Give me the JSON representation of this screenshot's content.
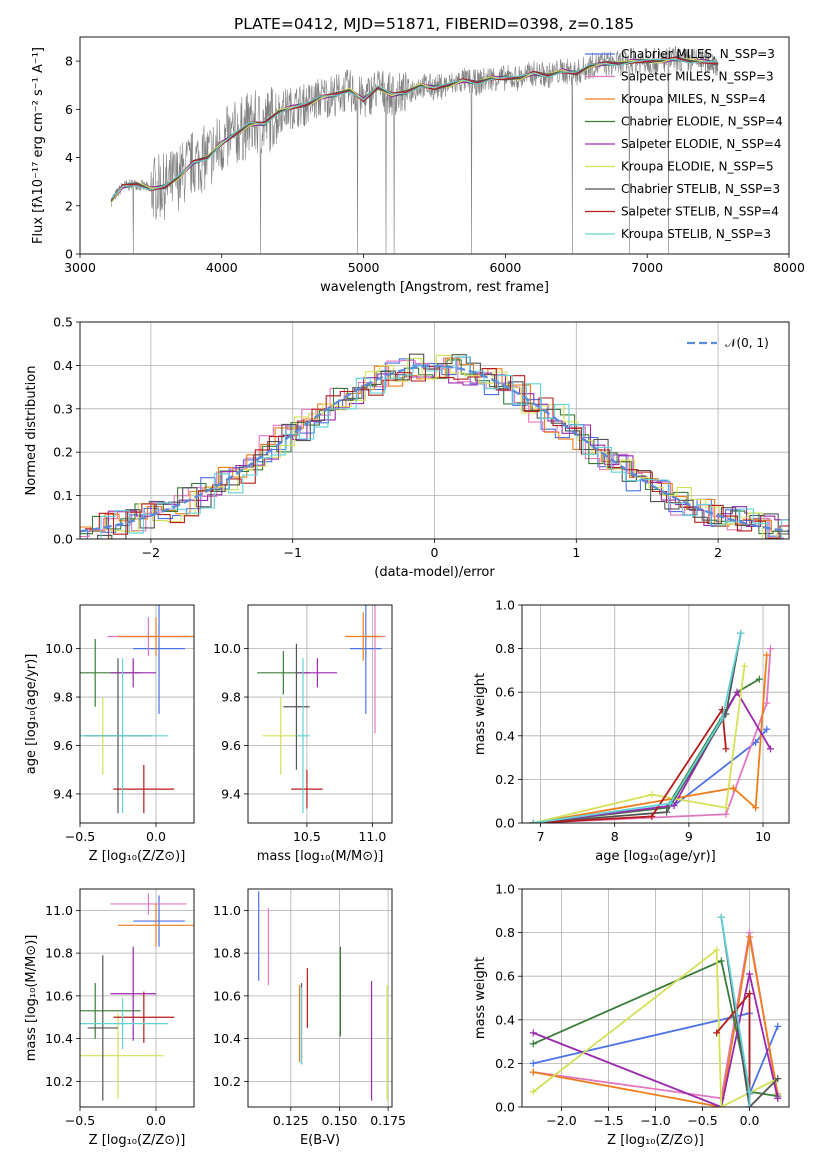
{
  "colors": {
    "series": [
      "#4c72e8",
      "#e377c2",
      "#ef7d1a",
      "#3a7d3a",
      "#9c27b0",
      "#d4e157",
      "#555555",
      "#b71c1c",
      "#61d3d8"
    ],
    "data_spectrum": "#808080",
    "normal_curve": "#5b8ad8"
  },
  "chart_data": [
    {
      "id": "spectrum",
      "type": "line",
      "title": "PLATE=0412, MJD=51871, FIBERID=0398, z=0.185",
      "xlabel": "wavelength [Angstrom, rest frame]",
      "ylabel": "Flux [fλ10⁻¹⁷ erg cm⁻² s⁻¹ A⁻¹]",
      "xlim": [
        3000,
        8000
      ],
      "ylim": [
        0,
        9
      ],
      "xticks": [
        "3000",
        "4000",
        "5000",
        "6000",
        "7000",
        "8000"
      ],
      "yticks": [
        "0",
        "2",
        "4",
        "6",
        "8"
      ],
      "legend_position": "right",
      "legend": [
        "Chabrier MILES, N_SSP=3",
        "Salpeter MILES, N_SSP=3",
        "Kroupa MILES, N_SSP=4",
        "Chabrier ELODIE, N_SSP=4",
        "Salpeter ELODIE, N_SSP=4",
        "Kroupa ELODIE, N_SSP=5",
        "Chabrier STELIB, N_SSP=3",
        "Salpeter STELIB, N_SSP=4",
        "Kroupa STELIB, N_SSP=3"
      ],
      "model_x": [
        3220,
        3300,
        3400,
        3500,
        3600,
        3700,
        3800,
        3900,
        4000,
        4100,
        4200,
        4300,
        4400,
        4500,
        4600,
        4700,
        4800,
        4900,
        5000,
        5100,
        5200,
        5300,
        5400,
        5500,
        5600,
        5700,
        5800,
        5900,
        6000,
        6100,
        6200,
        6300,
        6400,
        6500,
        6600,
        6700,
        6800,
        6900,
        7000,
        7100,
        7200,
        7300,
        7400,
        7500
      ],
      "model_y": [
        2.2,
        2.8,
        2.9,
        2.7,
        2.8,
        3.2,
        3.8,
        4.0,
        4.6,
        5.0,
        5.4,
        5.4,
        5.9,
        6.1,
        6.2,
        6.5,
        6.6,
        6.8,
        6.4,
        6.9,
        6.6,
        6.7,
        7.0,
        6.9,
        7.0,
        7.2,
        7.1,
        7.3,
        7.3,
        7.3,
        7.5,
        7.4,
        7.6,
        7.5,
        7.8,
        7.9,
        7.9,
        8.0,
        8.0,
        8.0,
        8.1,
        8.0,
        8.0,
        7.9
      ]
    },
    {
      "id": "residuals",
      "type": "step",
      "xlabel": "(data-model)/error",
      "ylabel": "Normed distribution",
      "xlim": [
        -2.5,
        2.5
      ],
      "ylim": [
        0,
        0.5
      ],
      "xticks": [
        "−2",
        "−1",
        "0",
        "1",
        "2"
      ],
      "yticks": [
        "0.0",
        "0.1",
        "0.2",
        "0.3",
        "0.4",
        "0.5"
      ],
      "legend": [
        "𝒩(0, 1)"
      ],
      "legend_position": "top-right"
    },
    {
      "id": "age_vs_Z",
      "type": "scatter",
      "xlabel": "Z [log₁₀(Z/Z⊙)]",
      "ylabel": "age  [log₁₀(age/yr)]",
      "xlim": [
        -0.5,
        0.25
      ],
      "ylim": [
        9.28,
        10.18
      ],
      "xticks": [
        "−0.5",
        "0.0"
      ],
      "yticks": [
        "9.4",
        "9.6",
        "9.8",
        "10.0"
      ],
      "points": [
        {
          "x": 0.02,
          "y": 10.0,
          "xerr": 0.17,
          "yerr": 0.27
        },
        {
          "x": -0.05,
          "y": 10.05,
          "xerr": 0.27,
          "yerr": 0.08
        },
        {
          "x": 0.0,
          "y": 10.05,
          "xerr": 0.25,
          "yerr": 0.08
        },
        {
          "x": -0.4,
          "y": 9.9,
          "xerr": 0.3,
          "yerr": 0.14
        },
        {
          "x": -0.15,
          "y": 9.9,
          "xerr": 0.15,
          "yerr": 0.06
        },
        {
          "x": -0.35,
          "y": 9.64,
          "xerr": 0.13,
          "yerr": 0.16
        },
        {
          "x": -0.25,
          "y": 9.64,
          "xerr": 0.22,
          "yerr": 0.32
        },
        {
          "x": -0.08,
          "y": 9.42,
          "xerr": 0.2,
          "yerr": 0.1
        },
        {
          "x": -0.22,
          "y": 9.64,
          "xerr": 0.3,
          "yerr": 0.32
        }
      ]
    },
    {
      "id": "age_vs_mass",
      "type": "scatter",
      "xlabel": "mass [log₁₀(M/M⊙)]",
      "ylabel": "",
      "xlim": [
        10.05,
        11.15
      ],
      "ylim": [
        9.28,
        10.18
      ],
      "xticks": [
        "10.5",
        "11.0"
      ],
      "yticks": [
        "9.4",
        "9.6",
        "9.8",
        "10.0"
      ],
      "points": [
        {
          "x": 10.95,
          "y": 10.0,
          "xerr": 0.12,
          "yerr": 0.27
        },
        {
          "x": 11.02,
          "y": 10.05,
          "xerr": 0.08,
          "yerr": 0.4
        },
        {
          "x": 10.93,
          "y": 10.05,
          "xerr": 0.14,
          "yerr": 0.1
        },
        {
          "x": 10.32,
          "y": 9.9,
          "xerr": 0.2,
          "yerr": 0.09
        },
        {
          "x": 10.58,
          "y": 9.9,
          "xerr": 0.15,
          "yerr": 0.06
        },
        {
          "x": 10.3,
          "y": 9.64,
          "xerr": 0.14,
          "yerr": 0.16
        },
        {
          "x": 10.42,
          "y": 9.76,
          "xerr": 0.1,
          "yerr": 0.26
        },
        {
          "x": 10.5,
          "y": 9.42,
          "xerr": 0.12,
          "yerr": 0.08
        },
        {
          "x": 10.47,
          "y": 9.64,
          "xerr": 0.05,
          "yerr": 0.32
        }
      ]
    },
    {
      "id": "mw_vs_age",
      "type": "line",
      "xlabel": "age  [log₁₀(age/yr)]",
      "ylabel": "mass weight",
      "xlim": [
        6.75,
        10.35
      ],
      "ylim": [
        0,
        1
      ],
      "xticks": [
        "7",
        "8",
        "9",
        "10"
      ],
      "yticks": [
        "0.0",
        "0.2",
        "0.4",
        "0.6",
        "0.8",
        "1.0"
      ],
      "series": [
        {
          "x": [
            6.9,
            8.8,
            9.9,
            10.05
          ],
          "y": [
            0.0,
            0.08,
            0.37,
            0.43
          ]
        },
        {
          "x": [
            6.9,
            9.5,
            10.05,
            10.1
          ],
          "y": [
            0.0,
            0.04,
            0.55,
            0.8
          ]
        },
        {
          "x": [
            6.9,
            9.6,
            9.9,
            10.05
          ],
          "y": [
            0.0,
            0.16,
            0.07,
            0.77
          ]
        },
        {
          "x": [
            6.9,
            8.7,
            9.65,
            9.95
          ],
          "y": [
            0.0,
            0.07,
            0.6,
            0.66
          ]
        },
        {
          "x": [
            6.9,
            8.8,
            9.65,
            10.1
          ],
          "y": [
            0.0,
            0.08,
            0.6,
            0.34
          ]
        },
        {
          "x": [
            6.9,
            8.5,
            9.5,
            9.75
          ],
          "y": [
            0.0,
            0.13,
            0.07,
            0.72
          ]
        },
        {
          "x": [
            6.9,
            8.7,
            9.5,
            9.7
          ],
          "y": [
            0.0,
            0.05,
            0.5,
            0.87
          ]
        },
        {
          "x": [
            6.9,
            8.5,
            9.45,
            9.5
          ],
          "y": [
            0.0,
            0.03,
            0.52,
            0.34
          ]
        },
        {
          "x": [
            6.9,
            8.75,
            9.45,
            9.7
          ],
          "y": [
            0.0,
            0.09,
            0.48,
            0.87
          ]
        }
      ]
    },
    {
      "id": "mass_vs_Z",
      "type": "scatter",
      "xlabel": "Z [log₁₀(Z/Z⊙)]",
      "ylabel": "mass [log₁₀(M/M⊙)]",
      "xlim": [
        -0.5,
        0.25
      ],
      "ylim": [
        10.08,
        11.1
      ],
      "xticks": [
        "−0.5",
        "0.0"
      ],
      "yticks": [
        "10.2",
        "10.4",
        "10.6",
        "10.8",
        "11.0"
      ],
      "points": [
        {
          "x": 0.02,
          "y": 10.95,
          "xerr": 0.17,
          "yerr": 0.12
        },
        {
          "x": -0.05,
          "y": 11.03,
          "xerr": 0.25,
          "yerr": 0.05
        },
        {
          "x": 0.0,
          "y": 10.93,
          "xerr": 0.25,
          "yerr": 0.1
        },
        {
          "x": -0.4,
          "y": 10.53,
          "xerr": 0.3,
          "yerr": 0.13
        },
        {
          "x": -0.15,
          "y": 10.61,
          "xerr": 0.15,
          "yerr": 0.22
        },
        {
          "x": -0.25,
          "y": 10.32,
          "xerr": 0.3,
          "yerr": 0.2
        },
        {
          "x": -0.35,
          "y": 10.45,
          "xerr": 0.1,
          "yerr": 0.34
        },
        {
          "x": -0.08,
          "y": 10.5,
          "xerr": 0.2,
          "yerr": 0.12
        },
        {
          "x": -0.22,
          "y": 10.47,
          "xerr": 0.3,
          "yerr": 0.12
        }
      ]
    },
    {
      "id": "mass_vs_EBV",
      "type": "scatter",
      "xlabel": "E(B-V)",
      "ylabel": "",
      "xlim": [
        0.103,
        0.177
      ],
      "ylim": [
        10.08,
        11.1
      ],
      "xticks": [
        "0.125",
        "0.150",
        "0.175"
      ],
      "yticks": [
        "10.2",
        "10.4",
        "10.6",
        "10.8",
        "11.0"
      ],
      "points": [
        {
          "x": 0.1085,
          "y": 10.88,
          "xerr": 0,
          "yerr": 0.21
        },
        {
          "x": 0.1135,
          "y": 10.83,
          "xerr": 0,
          "yerr": 0.18
        },
        {
          "x": 0.1295,
          "y": 10.47,
          "xerr": 0,
          "yerr": 0.18
        },
        {
          "x": 0.1505,
          "y": 10.62,
          "xerr": 0,
          "yerr": 0.21
        },
        {
          "x": 0.1665,
          "y": 10.39,
          "xerr": 0,
          "yerr": 0.28
        },
        {
          "x": 0.1745,
          "y": 10.38,
          "xerr": 0,
          "yerr": 0.27
        },
        {
          "x": 0.1305,
          "y": 10.47,
          "xerr": 0,
          "yerr": 0.19
        },
        {
          "x": 0.1335,
          "y": 10.59,
          "xerr": 0,
          "yerr": 0.14
        },
        {
          "x": 0.1305,
          "y": 10.46,
          "xerr": 0,
          "yerr": 0.18
        }
      ]
    },
    {
      "id": "mw_vs_Z",
      "type": "line",
      "xlabel": "Z [log₁₀(Z/Z⊙)]",
      "ylabel": "mass weight",
      "xlim": [
        -2.42,
        0.42
      ],
      "ylim": [
        0,
        1
      ],
      "xticks": [
        "−2.0",
        "−1.5",
        "−1.0",
        "−0.5",
        "0.0"
      ],
      "yticks": [
        "0.0",
        "0.2",
        "0.4",
        "0.6",
        "0.8",
        "1.0"
      ],
      "series": [
        {
          "x": [
            -2.3,
            0.0,
            0.0,
            0.3
          ],
          "y": [
            0.2,
            0.43,
            0.06,
            0.37
          ]
        },
        {
          "x": [
            -2.3,
            -0.3,
            0.0,
            0.3
          ],
          "y": [
            0.16,
            0.04,
            0.8,
            0.04
          ]
        },
        {
          "x": [
            -2.3,
            -0.3,
            0.0,
            0.3
          ],
          "y": [
            0.16,
            0.0,
            0.78,
            0.06
          ]
        },
        {
          "x": [
            -2.3,
            -0.3,
            0.0,
            0.3
          ],
          "y": [
            0.29,
            0.67,
            0.07,
            0.05
          ]
        },
        {
          "x": [
            -2.3,
            -0.3,
            0.0,
            0.3
          ],
          "y": [
            0.34,
            0.0,
            0.61,
            0.04
          ]
        },
        {
          "x": [
            -2.3,
            -0.35,
            -0.3,
            0.3
          ],
          "y": [
            0.07,
            0.72,
            0.0,
            0.13
          ]
        },
        {
          "x": [
            -0.3,
            0.0,
            0.3
          ],
          "y": [
            0.87,
            0.0,
            0.13
          ]
        },
        {
          "x": [
            -0.35,
            0.0,
            0.0
          ],
          "y": [
            0.34,
            0.52,
            0.0
          ]
        },
        {
          "x": [
            -0.3,
            0.0,
            0.0
          ],
          "y": [
            0.87,
            0.07,
            0.0
          ]
        }
      ]
    }
  ]
}
